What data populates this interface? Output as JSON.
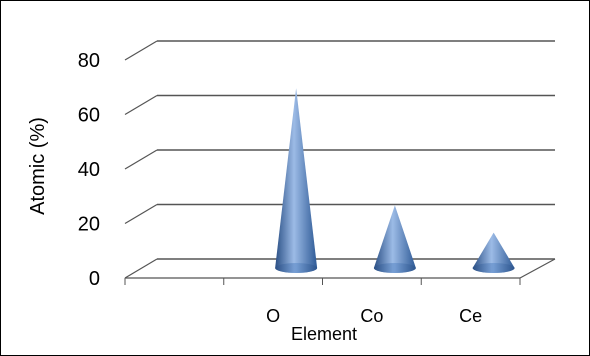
{
  "chart_data": {
    "type": "bar",
    "style": "3d-cone",
    "title": "",
    "xlabel": "Element",
    "ylabel": "Atomic (%)",
    "categories": [
      "",
      "O",
      "Co",
      "Ce"
    ],
    "values": [
      null,
      66,
      23,
      13
    ],
    "ylim": [
      0,
      80
    ],
    "yticks": [
      "0",
      "20",
      "40",
      "60",
      "80"
    ],
    "grid": true,
    "legend": "none",
    "colors": {
      "cone": "#4f81bd",
      "cone_dark": "#2a4f85",
      "cone_light": "#9cbbe6",
      "grid": "#555555"
    }
  }
}
